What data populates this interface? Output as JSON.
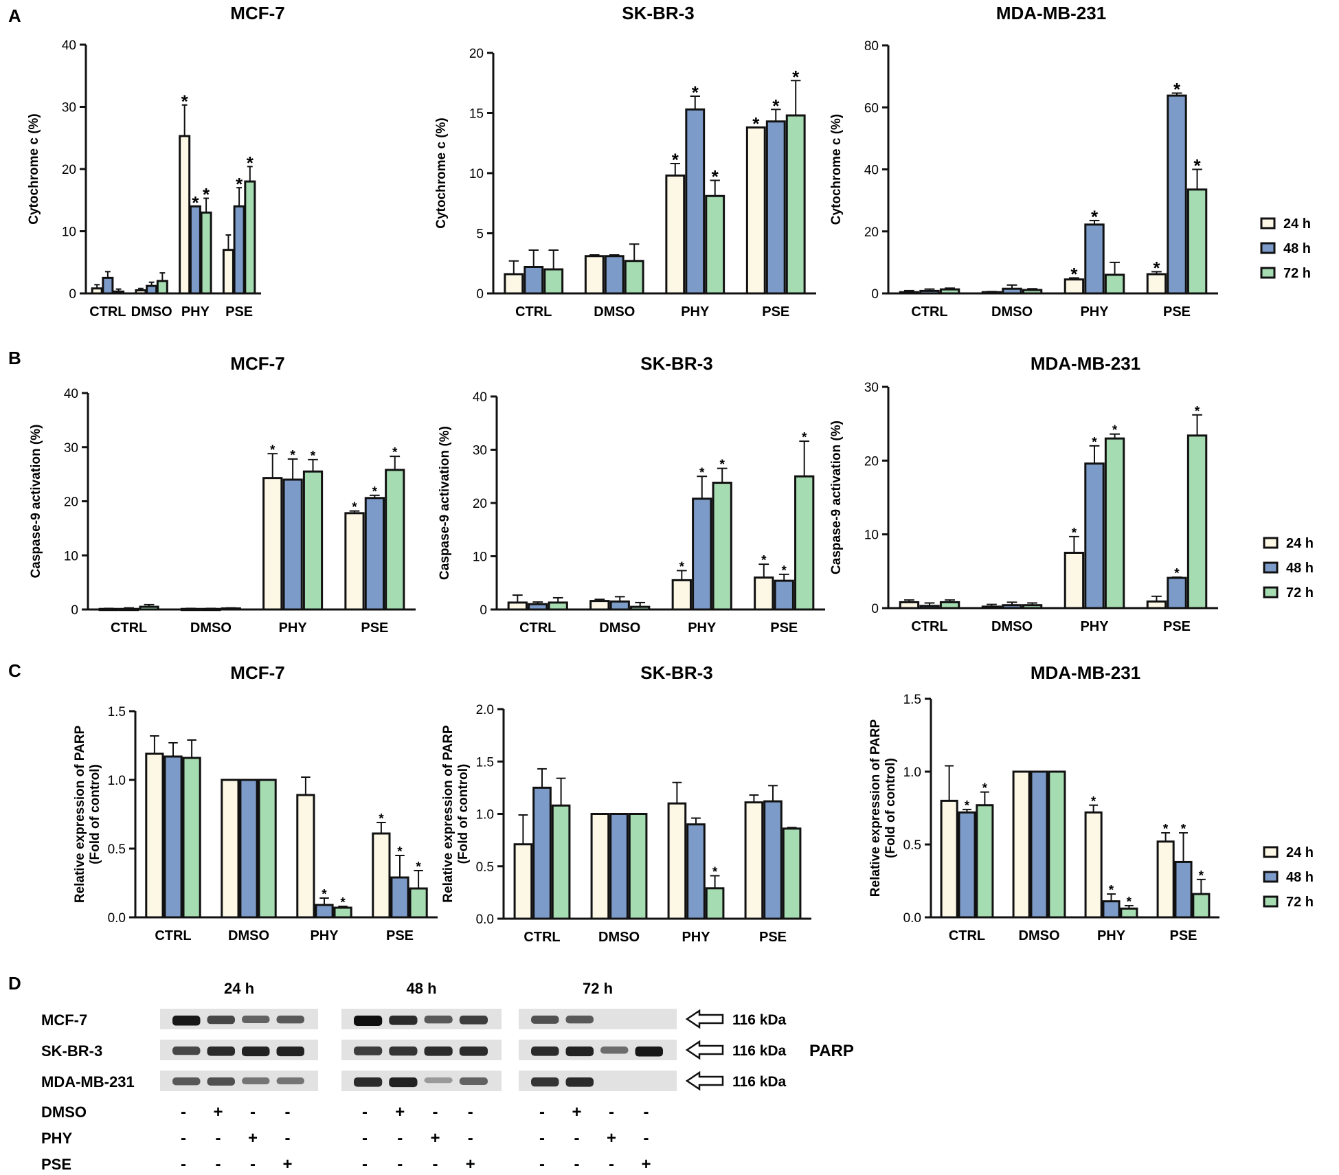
{
  "colors": {
    "h24": "#fdf8e6",
    "h48": "#7d9bc9",
    "h72": "#a6dcb1",
    "ink": "#111111"
  },
  "legend": [
    "24 h",
    "48 h",
    "72 h"
  ],
  "chart_data": [
    {
      "panel": "A",
      "type": "bar",
      "title": "MCF-7",
      "ylabel": "Cytochrome c (%)",
      "ylim": [
        0,
        40
      ],
      "yticks": [
        "0",
        "10",
        "20",
        "30",
        "40"
      ],
      "star_size": "big",
      "categories": [
        "CTRL",
        "DMSO",
        "PHY",
        "PSE"
      ],
      "series": [
        {
          "name": "24 h",
          "values": [
            0.8,
            0.5,
            25.3,
            7.0
          ],
          "errors": [
            0.6,
            0.3,
            5.0,
            2.4
          ],
          "stars": [
            false,
            false,
            true,
            false
          ]
        },
        {
          "name": "48 h",
          "values": [
            2.5,
            1.2,
            14.0,
            14.0
          ],
          "errors": [
            1.0,
            0.6,
            0.0,
            3.0
          ],
          "stars": [
            false,
            false,
            true,
            true
          ]
        },
        {
          "name": "72 h",
          "values": [
            0.3,
            2.0,
            13.0,
            18.0
          ],
          "errors": [
            0.4,
            1.3,
            2.3,
            2.4
          ],
          "stars": [
            false,
            false,
            true,
            true
          ]
        }
      ]
    },
    {
      "panel": "A",
      "type": "bar",
      "title": "SK-BR-3",
      "ylabel": "Cytochrome c (%)",
      "ylim": [
        0,
        20
      ],
      "yticks": [
        "0",
        "5",
        "10",
        "15",
        "20"
      ],
      "star_size": "big",
      "categories": [
        "CTRL",
        "DMSO",
        "PHY",
        "PSE"
      ],
      "series": [
        {
          "name": "24 h",
          "values": [
            1.6,
            3.1,
            9.8,
            13.8
          ],
          "errors": [
            1.1,
            0.1,
            1.0,
            0.0
          ],
          "stars": [
            false,
            false,
            true,
            true
          ]
        },
        {
          "name": "48 h",
          "values": [
            2.2,
            3.1,
            15.3,
            14.3
          ],
          "errors": [
            1.4,
            0.1,
            1.1,
            1.0
          ],
          "stars": [
            false,
            false,
            true,
            true
          ]
        },
        {
          "name": "72 h",
          "values": [
            2.0,
            2.7,
            8.1,
            14.8
          ],
          "errors": [
            1.6,
            1.4,
            1.3,
            2.9
          ],
          "stars": [
            false,
            false,
            true,
            true
          ]
        }
      ]
    },
    {
      "panel": "A",
      "type": "bar",
      "title": "MDA-MB-231",
      "ylabel": "Cytochrome c (%)",
      "ylim": [
        0,
        80
      ],
      "yticks": [
        "0",
        "20",
        "40",
        "60",
        "80"
      ],
      "star_size": "big",
      "categories": [
        "CTRL",
        "DMSO",
        "PHY",
        "PSE"
      ],
      "series": [
        {
          "name": "24 h",
          "values": [
            0.4,
            0.4,
            4.5,
            6.2
          ],
          "errors": [
            0.5,
            0.2,
            0.5,
            0.8
          ],
          "stars": [
            false,
            false,
            true,
            true
          ]
        },
        {
          "name": "48 h",
          "values": [
            0.8,
            1.5,
            22.2,
            63.8
          ],
          "errors": [
            0.6,
            1.2,
            1.3,
            0.8
          ],
          "stars": [
            false,
            false,
            true,
            true
          ]
        },
        {
          "name": "72 h",
          "values": [
            1.3,
            1.1,
            6.0,
            33.5
          ],
          "errors": [
            0.4,
            0.4,
            4.0,
            6.5
          ],
          "stars": [
            false,
            false,
            false,
            true
          ]
        }
      ]
    },
    {
      "panel": "B",
      "type": "bar",
      "title": "MCF-7",
      "ylabel": "Caspase-9 activation (%)",
      "ylim": [
        0,
        40
      ],
      "yticks": [
        "0",
        "10",
        "20",
        "30",
        "40"
      ],
      "star_size": "small",
      "categories": [
        "CTRL",
        "DMSO",
        "PHY",
        "PSE"
      ],
      "series": [
        {
          "name": "24 h",
          "values": [
            0.1,
            0.1,
            24.3,
            17.8
          ],
          "errors": [
            0.1,
            0.1,
            4.5,
            0.4
          ],
          "stars": [
            false,
            false,
            true,
            true
          ]
        },
        {
          "name": "48 h",
          "values": [
            0.1,
            0.1,
            24.0,
            20.6
          ],
          "errors": [
            0.2,
            0.1,
            3.8,
            0.5
          ],
          "stars": [
            false,
            false,
            true,
            true
          ]
        },
        {
          "name": "72 h",
          "values": [
            0.5,
            0.2,
            25.5,
            25.8
          ],
          "errors": [
            0.4,
            0.1,
            2.2,
            2.5
          ],
          "stars": [
            false,
            false,
            true,
            true
          ]
        }
      ]
    },
    {
      "panel": "B",
      "type": "bar",
      "title": "SK-BR-3",
      "ylabel": "Caspase-9 activation (%)",
      "ylim": [
        0,
        40
      ],
      "yticks": [
        "0",
        "10",
        "20",
        "30",
        "40"
      ],
      "star_size": "small",
      "categories": [
        "CTRL",
        "DMSO",
        "PHY",
        "PSE"
      ],
      "series": [
        {
          "name": "24 h",
          "values": [
            1.3,
            1.6,
            5.5,
            6.0
          ],
          "errors": [
            1.4,
            0.3,
            1.8,
            2.5
          ],
          "stars": [
            false,
            false,
            true,
            true
          ]
        },
        {
          "name": "48 h",
          "values": [
            1.0,
            1.5,
            20.8,
            5.4
          ],
          "errors": [
            0.4,
            0.9,
            4.2,
            1.2
          ],
          "stars": [
            false,
            false,
            true,
            true
          ]
        },
        {
          "name": "72 h",
          "values": [
            1.3,
            0.5,
            23.8,
            25.0
          ],
          "errors": [
            0.9,
            0.8,
            2.7,
            6.6
          ],
          "stars": [
            false,
            false,
            true,
            true
          ]
        }
      ]
    },
    {
      "panel": "B",
      "type": "bar",
      "title": "MDA-MB-231",
      "ylabel": "Caspase-9 activation (%)",
      "ylim": [
        0,
        30
      ],
      "yticks": [
        "0",
        "10",
        "20",
        "30"
      ],
      "star_size": "small",
      "categories": [
        "CTRL",
        "DMSO",
        "PHY",
        "PSE"
      ],
      "series": [
        {
          "name": "24 h",
          "values": [
            0.8,
            0.2,
            7.5,
            0.9
          ],
          "errors": [
            0.3,
            0.3,
            2.2,
            0.7
          ],
          "stars": [
            false,
            false,
            true,
            false
          ]
        },
        {
          "name": "48 h",
          "values": [
            0.3,
            0.4,
            19.6,
            4.1
          ],
          "errors": [
            0.4,
            0.4,
            2.4,
            0.1
          ],
          "stars": [
            false,
            false,
            true,
            true
          ]
        },
        {
          "name": "72 h",
          "values": [
            0.8,
            0.4,
            23.0,
            23.4
          ],
          "errors": [
            0.3,
            0.3,
            0.6,
            2.8
          ],
          "stars": [
            false,
            false,
            true,
            true
          ]
        }
      ]
    },
    {
      "panel": "C",
      "type": "bar",
      "title": "MCF-7",
      "ylabel": "Relative expression of PARP",
      "ylabel2": "(Fold of control)",
      "ylim": [
        0,
        1.5
      ],
      "yticks": [
        "0.0",
        "0.5",
        "1.0",
        "1.5"
      ],
      "star_size": "small",
      "categories": [
        "CTRL",
        "DMSO",
        "PHY",
        "PSE"
      ],
      "series": [
        {
          "name": "24 h",
          "values": [
            1.19,
            1.0,
            0.89,
            0.61
          ],
          "errors": [
            0.13,
            0.0,
            0.13,
            0.08
          ],
          "stars": [
            false,
            false,
            false,
            true
          ]
        },
        {
          "name": "48 h",
          "values": [
            1.17,
            1.0,
            0.09,
            0.29
          ],
          "errors": [
            0.1,
            0.0,
            0.05,
            0.16
          ],
          "stars": [
            false,
            false,
            true,
            true
          ]
        },
        {
          "name": "72 h",
          "values": [
            1.16,
            1.0,
            0.07,
            0.21
          ],
          "errors": [
            0.13,
            0.0,
            0.01,
            0.13
          ],
          "stars": [
            false,
            false,
            true,
            true
          ]
        }
      ]
    },
    {
      "panel": "C",
      "type": "bar",
      "title": "SK-BR-3",
      "ylabel": "Relative expression of PARP",
      "ylabel2": "(Fold of control)",
      "ylim": [
        0,
        2.0
      ],
      "yticks": [
        "0.0",
        "0.5",
        "1.0",
        "1.5",
        "2.0"
      ],
      "star_size": "small",
      "categories": [
        "CTRL",
        "DMSO",
        "PHY",
        "PSE"
      ],
      "series": [
        {
          "name": "24 h",
          "values": [
            0.71,
            1.0,
            1.1,
            1.11
          ],
          "errors": [
            0.28,
            0.0,
            0.2,
            0.07
          ],
          "stars": [
            false,
            false,
            false,
            false
          ]
        },
        {
          "name": "48 h",
          "values": [
            1.25,
            1.0,
            0.9,
            1.12
          ],
          "errors": [
            0.18,
            0.0,
            0.06,
            0.15
          ],
          "stars": [
            false,
            false,
            false,
            false
          ]
        },
        {
          "name": "72 h",
          "values": [
            1.08,
            1.0,
            0.29,
            0.86
          ],
          "errors": [
            0.26,
            0.0,
            0.12,
            0.01
          ],
          "stars": [
            false,
            false,
            true,
            false
          ]
        }
      ]
    },
    {
      "panel": "C",
      "type": "bar",
      "title": "MDA-MB-231",
      "ylabel": "Relative expression of PARP",
      "ylabel2": "(Fold of control)",
      "ylim": [
        0,
        1.5
      ],
      "yticks": [
        "0.0",
        "0.5",
        "1.0",
        "1.5"
      ],
      "star_size": "small",
      "categories": [
        "CTRL",
        "DMSO",
        "PHY",
        "PSE"
      ],
      "series": [
        {
          "name": "24 h",
          "values": [
            0.8,
            1.0,
            0.72,
            0.52
          ],
          "errors": [
            0.24,
            0.0,
            0.05,
            0.06
          ],
          "stars": [
            false,
            false,
            true,
            true
          ]
        },
        {
          "name": "48 h",
          "values": [
            0.72,
            1.0,
            0.11,
            0.38
          ],
          "errors": [
            0.02,
            0.0,
            0.05,
            0.2
          ],
          "stars": [
            true,
            false,
            true,
            true
          ]
        },
        {
          "name": "72 h",
          "values": [
            0.77,
            1.0,
            0.06,
            0.16
          ],
          "errors": [
            0.09,
            0.0,
            0.02,
            0.1
          ],
          "stars": [
            true,
            false,
            true,
            true
          ]
        }
      ]
    }
  ],
  "panel_letters": [
    "A",
    "B",
    "C",
    "D"
  ],
  "blot": {
    "times": [
      "24 h",
      "48 h",
      "72 h"
    ],
    "cell_lines": [
      "MCF-7",
      "SK-BR-3",
      "MDA-MB-231"
    ],
    "kda": [
      "116 kDa",
      "116 kDa",
      "116 kDa"
    ],
    "protein": "PARP",
    "treatments": [
      "DMSO",
      "PHY",
      "PSE"
    ],
    "signs": [
      [
        "-",
        "+",
        "-",
        "-",
        "-",
        "+",
        "-",
        "-",
        "-",
        "+",
        "-",
        "-"
      ],
      [
        "-",
        "-",
        "+",
        "-",
        "-",
        "-",
        "+",
        "-",
        "-",
        "-",
        "+",
        "-"
      ],
      [
        "-",
        "-",
        "-",
        "+",
        "-",
        "-",
        "-",
        "+",
        "-",
        "-",
        "-",
        "+"
      ]
    ],
    "band_intensity": [
      [
        0.95,
        0.7,
        0.55,
        0.6,
        1.0,
        0.85,
        0.6,
        0.75,
        0.65,
        0.6,
        0.0,
        0.0
      ],
      [
        0.7,
        0.85,
        0.9,
        0.9,
        0.75,
        0.8,
        0.85,
        0.85,
        0.85,
        0.9,
        0.5,
        0.95
      ],
      [
        0.6,
        0.65,
        0.45,
        0.45,
        0.85,
        0.9,
        0.25,
        0.55,
        0.8,
        0.85,
        0.0,
        0.0
      ]
    ]
  }
}
